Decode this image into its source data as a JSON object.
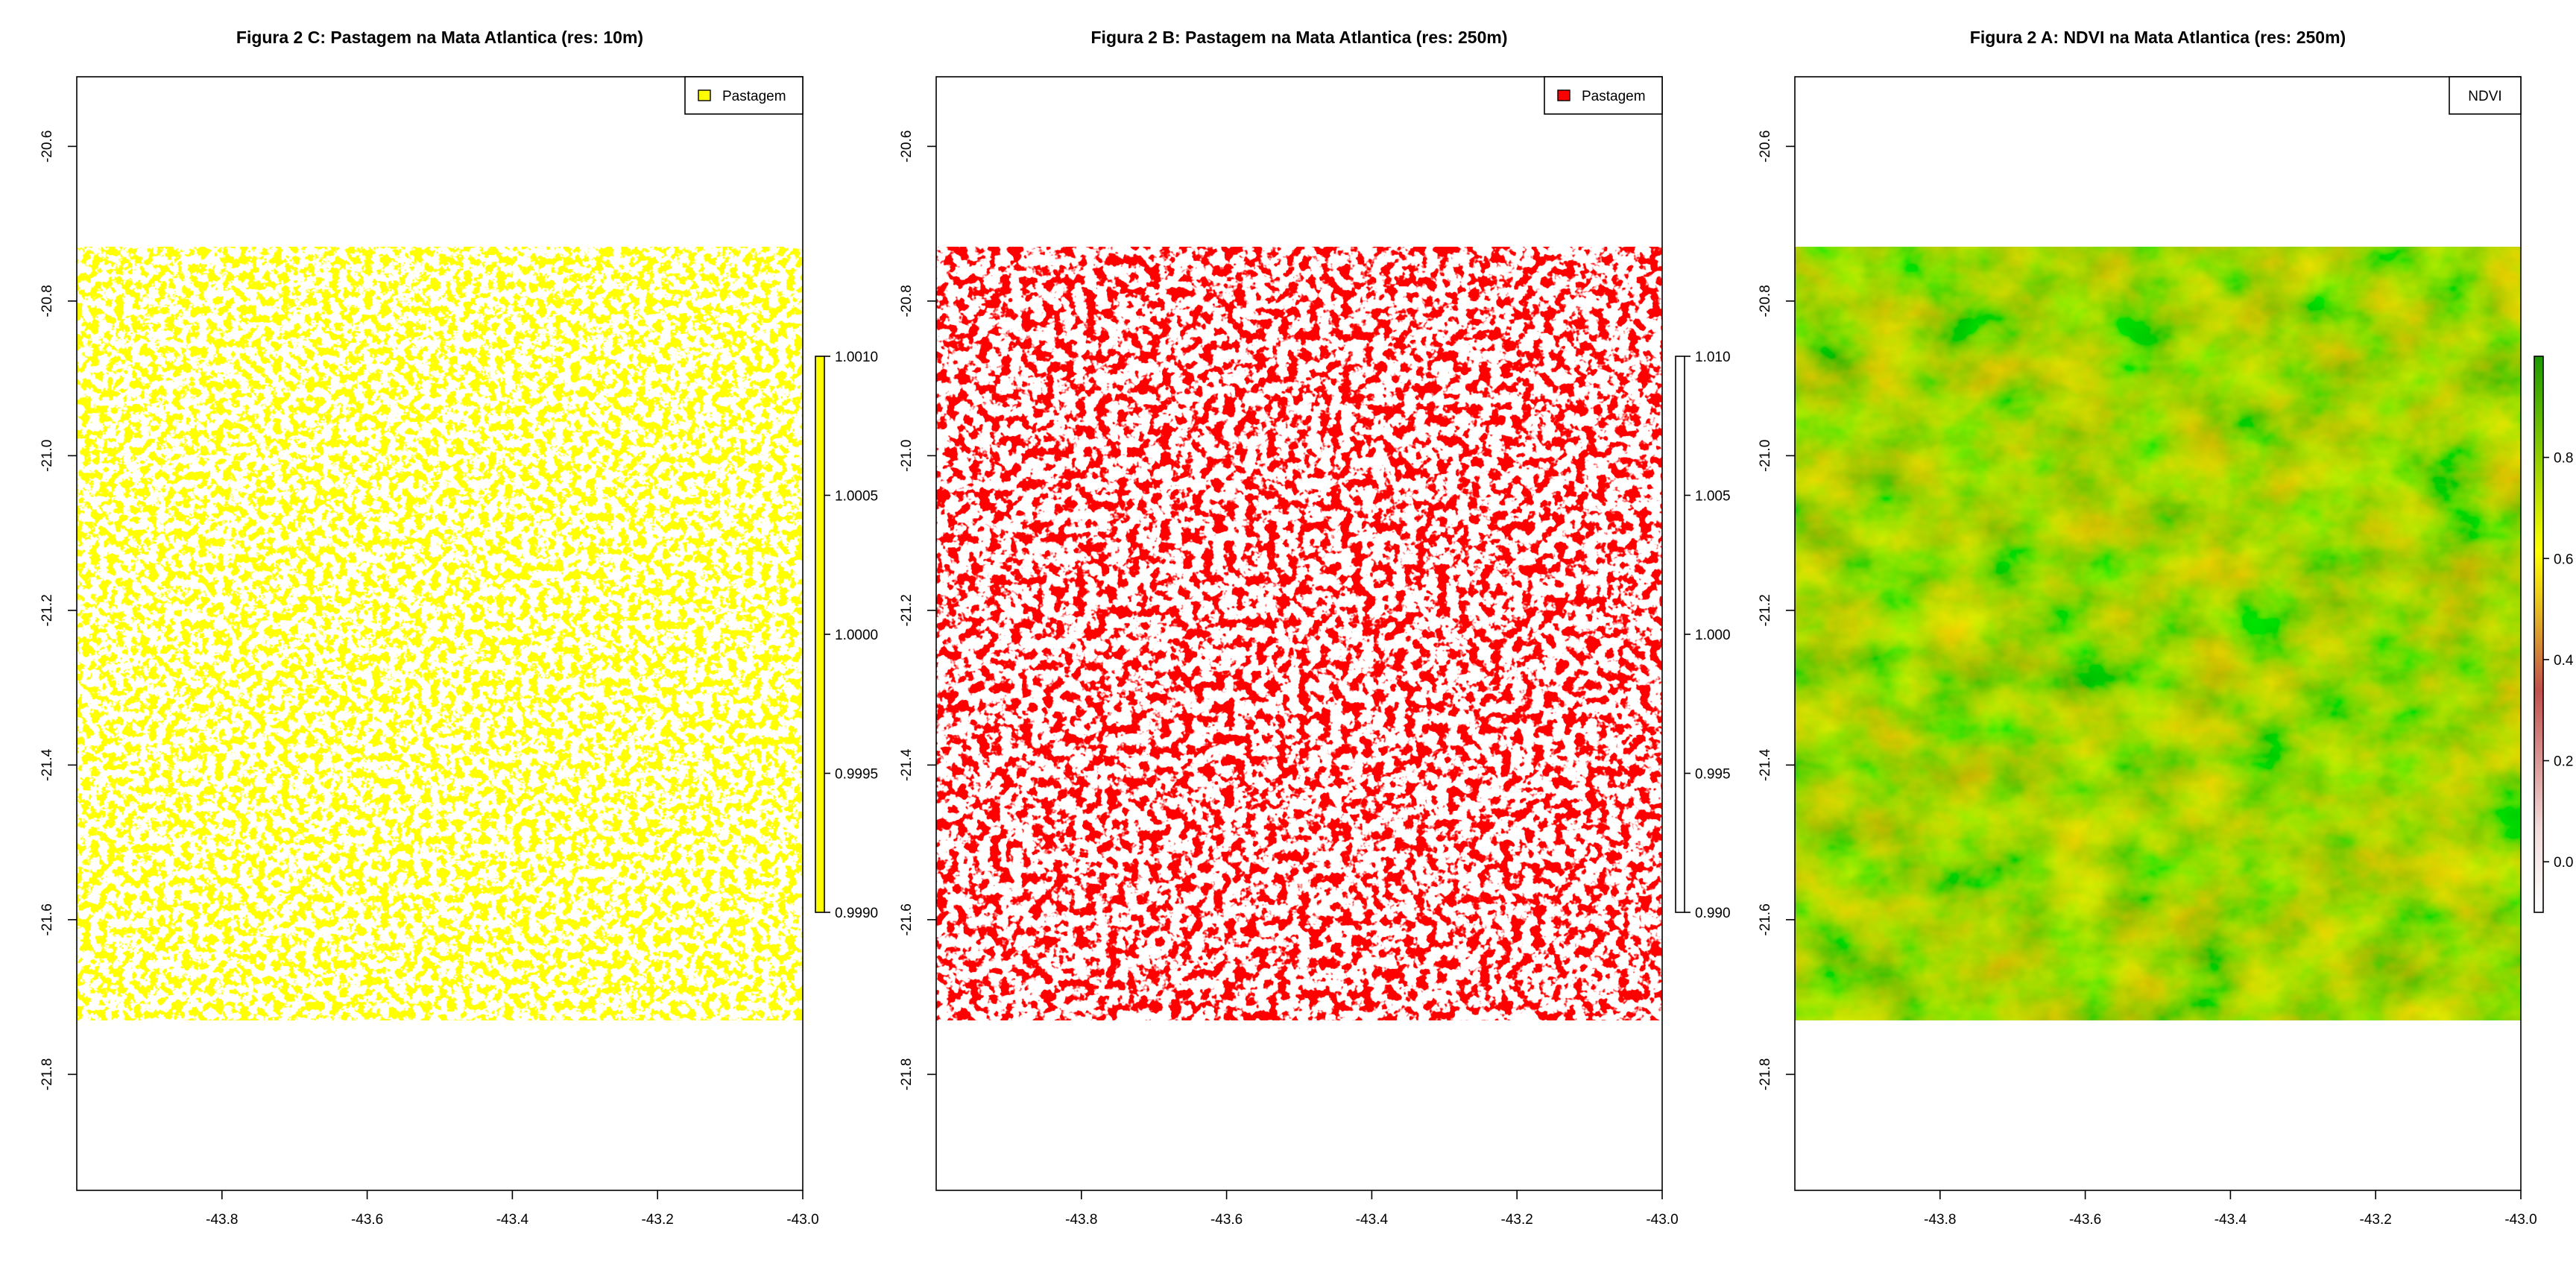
{
  "chart_data": [
    {
      "type": "heatmap",
      "title": "Figura 2 C: Pastagem na Mata Atlantica (res: 10m)",
      "x_ticks": [
        -43.8,
        -43.6,
        -43.4,
        -43.2,
        -43.0
      ],
      "y_ticks": [
        -20.6,
        -20.8,
        -21.0,
        -21.2,
        -21.4,
        -21.6,
        -21.8
      ],
      "x_tick_labels": [
        "-43.8",
        "-43.6",
        "-43.4",
        "-43.2",
        "-43.0"
      ],
      "y_tick_labels": [
        "-20.6",
        "-20.8",
        "-21.0",
        "-21.2",
        "-21.4",
        "-21.6",
        "-21.8"
      ],
      "xlim": [
        -44.0,
        -43.0
      ],
      "ylim": [
        -21.95,
        -20.51
      ],
      "raster_extent": {
        "x": [
          -44.0,
          -43.0
        ],
        "y": [
          -21.73,
          -20.73
        ]
      },
      "legend": {
        "label": "Pastagem",
        "color": "#ffff00",
        "placement": "top-right"
      },
      "colorbar": {
        "min": 0.999,
        "max": 1.001,
        "ticks": [
          "1.0010",
          "1.0005",
          "1.0000",
          "0.9995",
          "0.9990"
        ],
        "colors": [
          "#ffff00",
          "#ffff00"
        ]
      },
      "fill_color": "#ffff00",
      "coverage": 0.72
    },
    {
      "type": "heatmap",
      "title": "Figura 2 B: Pastagem na Mata Atlantica (res: 250m)",
      "x_ticks": [
        -43.8,
        -43.6,
        -43.4,
        -43.2,
        -43.0
      ],
      "y_ticks": [
        -20.6,
        -20.8,
        -21.0,
        -21.2,
        -21.4,
        -21.6,
        -21.8
      ],
      "x_tick_labels": [
        "-43.8",
        "-43.6",
        "-43.4",
        "-43.2",
        "-43.0"
      ],
      "y_tick_labels": [
        "-20.6",
        "-20.8",
        "-21.0",
        "-21.2",
        "-21.4",
        "-21.6",
        "-21.8"
      ],
      "xlim": [
        -44.0,
        -43.0
      ],
      "ylim": [
        -21.95,
        -20.51
      ],
      "raster_extent": {
        "x": [
          -44.0,
          -43.0
        ],
        "y": [
          -21.73,
          -20.73
        ]
      },
      "legend": {
        "label": "Pastagem",
        "color": "#ff0000",
        "placement": "top-right"
      },
      "colorbar": {
        "min": 0.99,
        "max": 1.01,
        "ticks": [
          "1.010",
          "1.005",
          "1.000",
          "0.995",
          "0.990"
        ],
        "colors": [
          "#ffffff",
          "#ffffff"
        ]
      },
      "fill_color": "#ff0000",
      "coverage": 0.62
    },
    {
      "type": "heatmap",
      "title": "Figura 2 A: NDVI na Mata Atlantica (res: 250m)",
      "x_ticks": [
        -43.8,
        -43.6,
        -43.4,
        -43.2,
        -43.0
      ],
      "y_ticks": [
        -20.6,
        -20.8,
        -21.0,
        -21.2,
        -21.4,
        -21.6,
        -21.8
      ],
      "x_tick_labels": [
        "-43.8",
        "-43.6",
        "-43.4",
        "-43.2",
        "-43.0"
      ],
      "y_tick_labels": [
        "-20.6",
        "-20.8",
        "-21.0",
        "-21.2",
        "-21.4",
        "-21.6",
        "-21.8"
      ],
      "xlim": [
        -44.0,
        -43.0
      ],
      "ylim": [
        -21.95,
        -20.51
      ],
      "raster_extent": {
        "x": [
          -44.0,
          -43.0
        ],
        "y": [
          -21.73,
          -20.73
        ]
      },
      "legend": {
        "label": "NDVI",
        "color": "",
        "placement": "top-right"
      },
      "colorbar": {
        "min": -0.1,
        "max": 1.0,
        "ticks": [
          "0.8",
          "0.6",
          "0.4",
          "0.2",
          "0.0"
        ],
        "colors": [
          "#ffffff",
          "#c0504d",
          "#ffff00",
          "#33aa00"
        ]
      },
      "fill_color": "#66bb00",
      "coverage": 1.0
    }
  ]
}
